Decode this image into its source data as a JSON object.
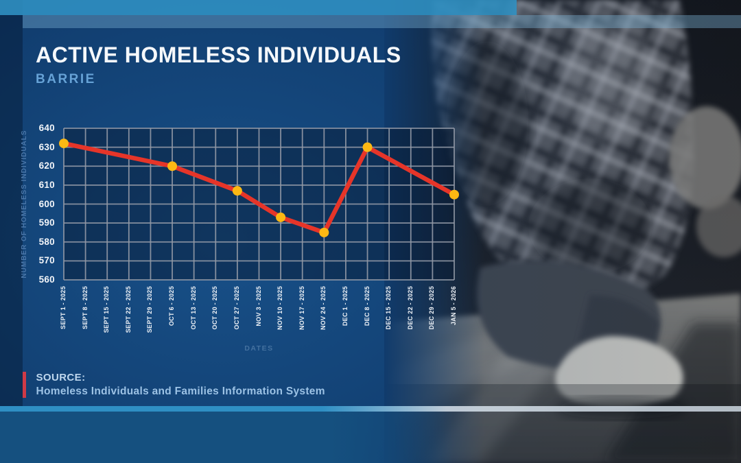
{
  "header": {
    "title": "ACTIVE HOMELESS INDIVIDUALS",
    "subtitle": "BARRIE"
  },
  "source": {
    "label": "SOURCE:",
    "text": "Homeless Individuals and Families Information System"
  },
  "photo": {
    "description": "black-and-white photo of a person in a plaid flannel shirt and jeans sitting on the floor"
  },
  "colors": {
    "background_navy": "#113e70",
    "top_bar_blue": "#3092c4",
    "bottom_line_blue": "#2f8fc4",
    "bottom_band_blue": "#15507f",
    "source_bar_red": "#cf3a47",
    "subtitle_blue": "#66a2d6"
  },
  "chart_data": {
    "type": "line",
    "title": "",
    "xlabel": "DATES",
    "ylabel": "NUMBER OF HOMELESS INDIVIDUALS",
    "ylim": [
      560,
      640
    ],
    "ytick_step": 10,
    "yticks": [
      640,
      630,
      620,
      610,
      600,
      590,
      580,
      570,
      560
    ],
    "grid": true,
    "legend": "none",
    "categories": [
      "SEPT 1 - 2025",
      "SEPT 8 - 2025",
      "SEPT 15 - 2025",
      "SEPT 22 - 2025",
      "SEPT 29 - 2025",
      "OCT 6 - 2025",
      "OCT 13 - 2025",
      "OCT 20 - 2025",
      "OCT 27 - 2025",
      "NOV 3 - 2025",
      "NOV 10 - 2025",
      "NOV 17 - 2025",
      "NOV 24 - 2025",
      "DEC 1 - 2025",
      "DEC 8 - 2025",
      "DEC 15 - 2025",
      "DEC 22 - 2025",
      "DEC 29 - 2025",
      "JAN 5 - 2026"
    ],
    "series": [
      {
        "name": "Active homeless individuals",
        "points": [
          {
            "x": "SEPT 1 - 2025",
            "y": 632
          },
          {
            "x": "OCT 6 - 2025",
            "y": 620
          },
          {
            "x": "OCT 27 - 2025",
            "y": 607
          },
          {
            "x": "NOV 10 - 2025",
            "y": 593
          },
          {
            "x": "NOV 24 - 2025",
            "y": 585
          },
          {
            "x": "DEC 8 - 2025",
            "y": 630
          },
          {
            "x": "JAN 5 - 2026",
            "y": 605
          }
        ]
      }
    ],
    "style": {
      "line_color": "#e63529",
      "marker_color": "#fdb813",
      "grid_color": "#9299a6",
      "plot_fill": "rgba(6,22,44,0.45)"
    }
  }
}
